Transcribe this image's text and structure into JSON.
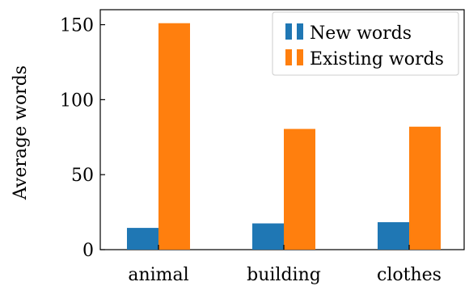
{
  "chart_data": {
    "type": "bar",
    "categories": [
      "animal",
      "building",
      "clothes"
    ],
    "series": [
      {
        "name": "New words",
        "color": "#1f77b4",
        "values": [
          14.5,
          17.5,
          18.3
        ]
      },
      {
        "name": "Existing words",
        "color": "#ff7f0e",
        "values": [
          151,
          80.5,
          82
        ]
      }
    ],
    "ylabel": "Average words",
    "ylim": [
      0,
      160
    ],
    "yticks": [
      0,
      50,
      100,
      150
    ],
    "grid": false,
    "legend_position": "top-right"
  }
}
